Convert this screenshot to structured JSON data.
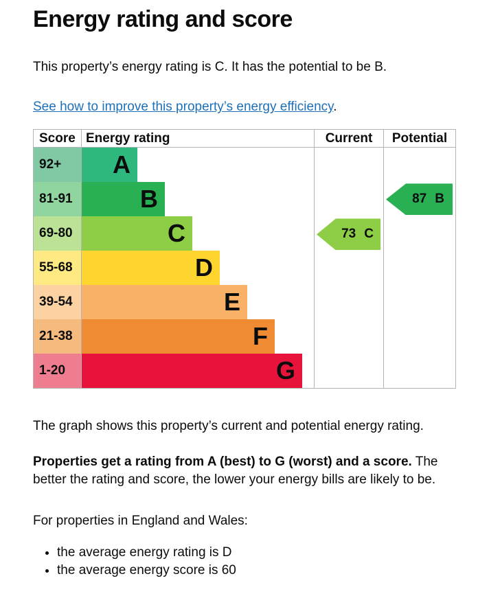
{
  "page": {
    "title": "Energy rating and score",
    "intro": "This property’s energy rating is C. It has the potential to be B.",
    "link_text": "See how to improve this property’s energy efficiency",
    "link_suffix": ".",
    "graph_caption": "The graph shows this property’s current and potential energy rating.",
    "explanation_bold": "Properties get a rating from A (best) to G (worst) and a score.",
    "explanation_rest": " The better the rating and score, the lower your energy bills are likely to be.",
    "region_heading": "For properties in England and Wales:",
    "bullets": {
      "rating": "the average energy rating is D",
      "score": "the average energy score is 60"
    }
  },
  "chart": {
    "headers": {
      "score": "Score",
      "rating": "Energy rating",
      "current": "Current",
      "potential": "Potential"
    },
    "bands": [
      {
        "score": "92+",
        "rating": "A",
        "color": "#2fb87d",
        "tint": "#81c8a4"
      },
      {
        "score": "81-91",
        "rating": "B",
        "color": "#28b052",
        "tint": "#90d4a0"
      },
      {
        "score": "69-80",
        "rating": "C",
        "color": "#8dce46",
        "tint": "#bbe295"
      },
      {
        "score": "55-68",
        "rating": "D",
        "color": "#ffd52f",
        "tint": "#ffe982"
      },
      {
        "score": "39-54",
        "rating": "E",
        "color": "#f9b168",
        "tint": "#fcd2a3"
      },
      {
        "score": "21-38",
        "rating": "F",
        "color": "#ef8b33",
        "tint": "#f5ba7e"
      },
      {
        "score": "1-20",
        "rating": "G",
        "color": "#e8133a",
        "tint": "#ee7d90"
      }
    ],
    "current": {
      "score": "73",
      "rating": "C",
      "color": "#8dce46"
    },
    "potential": {
      "score": "87",
      "rating": "B",
      "color": "#28b052"
    },
    "border_color": "#b1b4b6",
    "link_color": "#1d70b8",
    "text_color": "#0b0c0c"
  },
  "chart_data": {
    "type": "table",
    "title": "Energy rating and score",
    "columns": [
      "Score",
      "Energy rating",
      "Current",
      "Potential"
    ],
    "bands": [
      {
        "rating": "A",
        "score_range": "92+"
      },
      {
        "rating": "B",
        "score_range": "81-91"
      },
      {
        "rating": "C",
        "score_range": "69-80"
      },
      {
        "rating": "D",
        "score_range": "55-68"
      },
      {
        "rating": "E",
        "score_range": "39-54"
      },
      {
        "rating": "F",
        "score_range": "21-38"
      },
      {
        "rating": "G",
        "score_range": "1-20"
      }
    ],
    "current": {
      "score": 73,
      "rating": "C"
    },
    "potential": {
      "score": 87,
      "rating": "B"
    },
    "layout": "stepped horizontal bars, best rating A (shortest) at top, worst G (longest) at bottom; current and potential shown as left-pointing arrow markers aligned to their band rows"
  }
}
